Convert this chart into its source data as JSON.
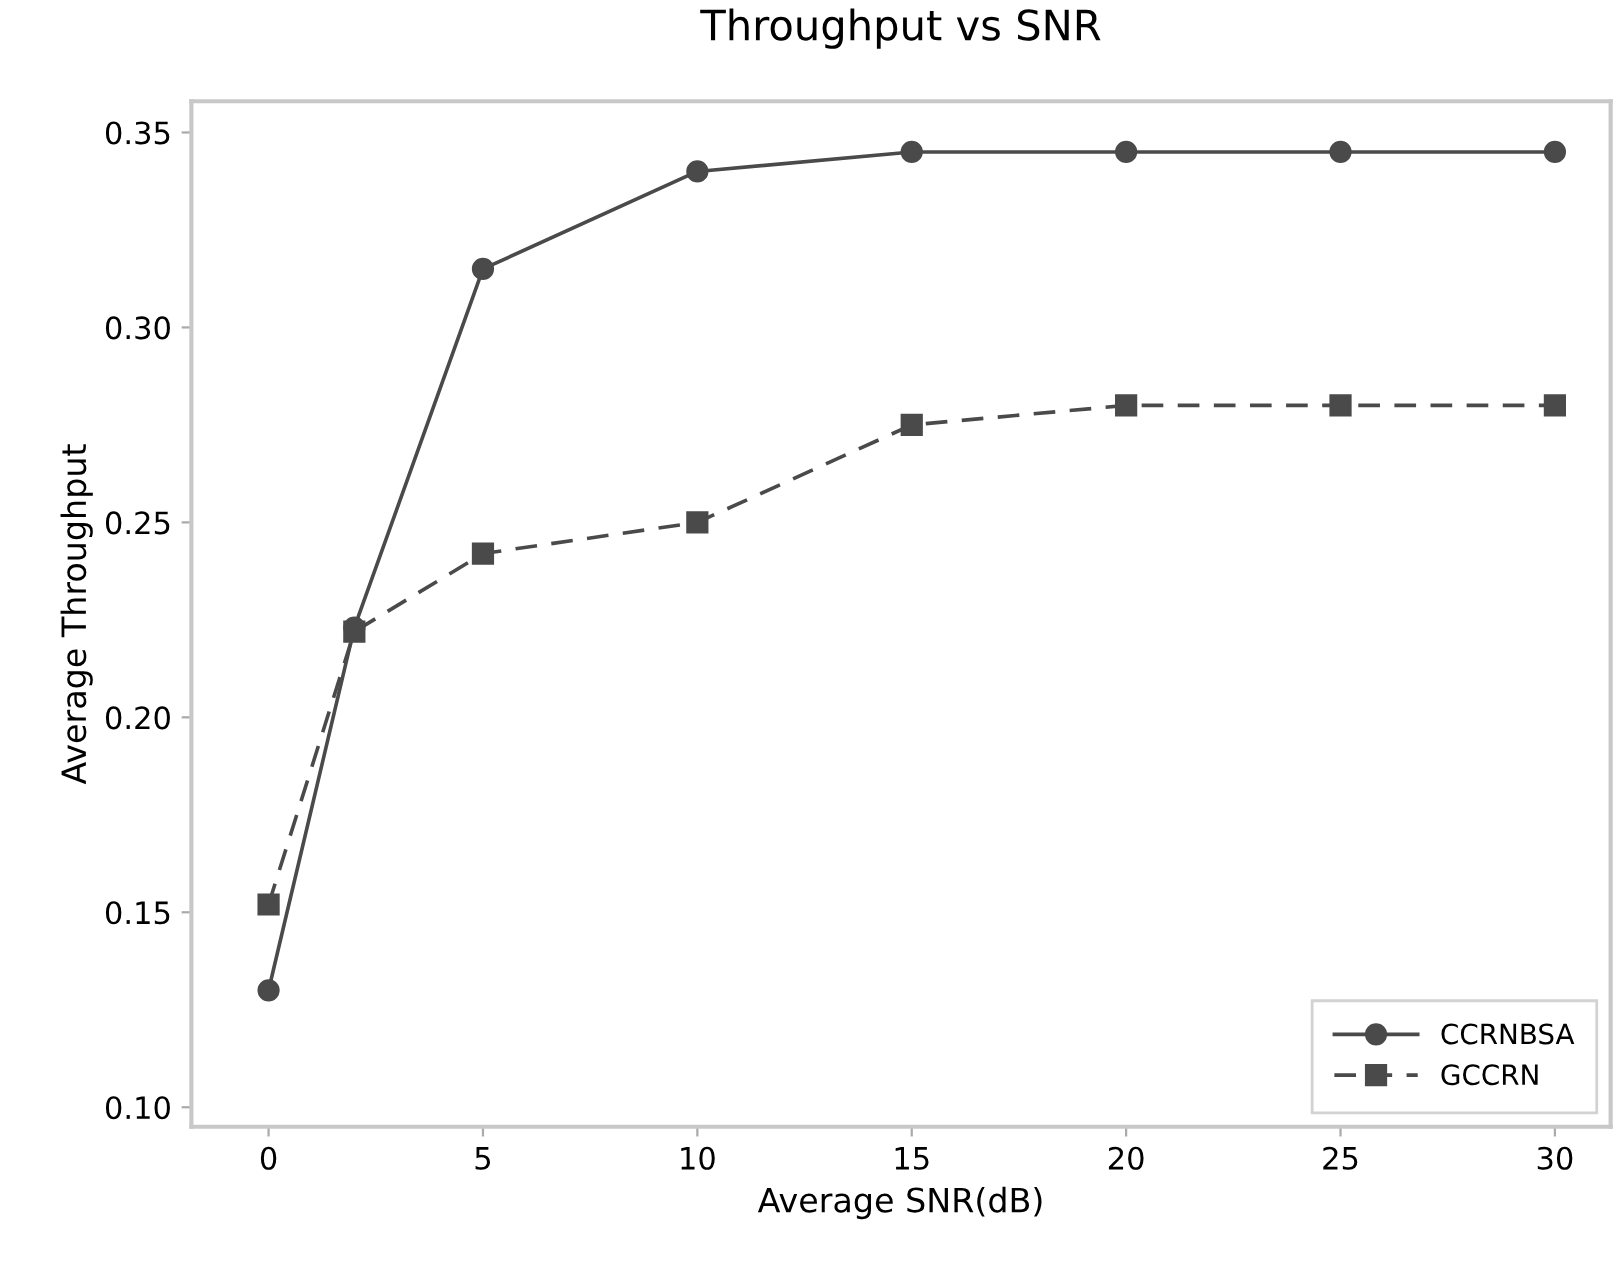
{
  "chart_data": {
    "type": "line",
    "title": "Throughput vs SNR",
    "xlabel": "Average SNR(dB)",
    "ylabel": "Average Throughput",
    "x": [
      0,
      2,
      5,
      10,
      15,
      20,
      25,
      30
    ],
    "series": [
      {
        "name": "CCRNBSA",
        "color": "#4a4a4a",
        "values": [
          0.13,
          0.223,
          0.315,
          0.34,
          0.345,
          0.345,
          0.345,
          0.345
        ],
        "marker": "circle",
        "line_style": "solid"
      },
      {
        "name": "GCCRN",
        "color": "#4a4a4a",
        "values": [
          0.152,
          0.222,
          0.242,
          0.25,
          0.275,
          0.28,
          0.28,
          0.28
        ],
        "marker": "square",
        "line_style": "dashed"
      }
    ],
    "xlim": [
      -1.8,
      31.3
    ],
    "xticks": [
      0,
      5,
      10,
      15,
      20,
      25,
      30
    ],
    "ylim": [
      0.095,
      0.358
    ],
    "yticks": [
      {
        "value": 0.1,
        "label": "0.10"
      },
      {
        "value": 0.15,
        "label": "0.15"
      },
      {
        "value": 0.2,
        "label": "0.20"
      },
      {
        "value": 0.25,
        "label": "0.25"
      },
      {
        "value": 0.3,
        "label": "0.30"
      },
      {
        "value": 0.35,
        "label": "0.35"
      }
    ],
    "grid": false,
    "legend": "bottom right"
  }
}
